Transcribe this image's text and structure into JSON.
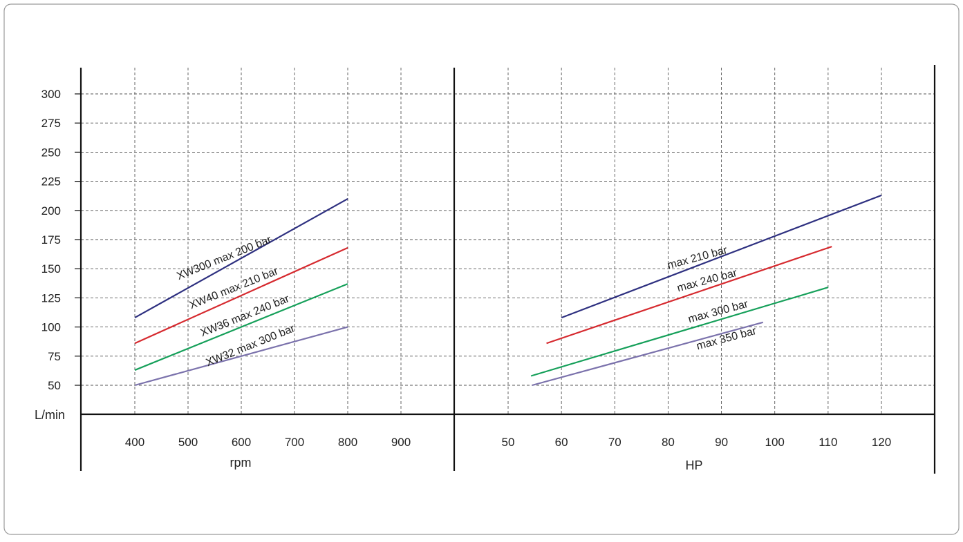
{
  "chart_data": [
    {
      "type": "line",
      "title": "",
      "ylabel": "L/min",
      "xlabel": "rpm",
      "xlim": [
        300,
        1000
      ],
      "ylim": [
        25,
        320
      ],
      "xticks": [
        400,
        500,
        600,
        700,
        800,
        900
      ],
      "yticks": [
        50,
        75,
        100,
        125,
        150,
        175,
        200,
        225,
        250,
        275,
        300
      ],
      "grid": true,
      "series": [
        {
          "name": "XW300 max 200 bar",
          "color": "#2e3080",
          "x": [
            400,
            800
          ],
          "y": [
            108,
            210
          ]
        },
        {
          "name": "XW40 max 210 bar",
          "color": "#d62a2f",
          "x": [
            400,
            800
          ],
          "y": [
            86,
            168
          ]
        },
        {
          "name": "XW36 max 240 bar",
          "color": "#16a05a",
          "x": [
            400,
            800
          ],
          "y": [
            63,
            137
          ]
        },
        {
          "name": "XW32 max 300 bar",
          "color": "#7b72ac",
          "x": [
            400,
            800
          ],
          "y": [
            50,
            100
          ]
        }
      ]
    },
    {
      "type": "line",
      "title": "",
      "ylabel": "",
      "xlabel": "HP",
      "xlim": [
        40,
        130
      ],
      "ylim": [
        25,
        320
      ],
      "xticks": [
        50,
        60,
        70,
        80,
        90,
        100,
        110,
        120
      ],
      "yticks": [
        50,
        75,
        100,
        125,
        150,
        175,
        200,
        225,
        250,
        275,
        300
      ],
      "grid": true,
      "series": [
        {
          "name": "max 210 bar",
          "color": "#2e3080",
          "x": [
            60,
            120
          ],
          "y": [
            108,
            213
          ]
        },
        {
          "name": "max 240 bar",
          "color": "#d62a2f",
          "x": [
            57.2,
            110.7
          ],
          "y": [
            86,
            169
          ]
        },
        {
          "name": "max 300 bar",
          "color": "#16a05a",
          "x": [
            54.3,
            110
          ],
          "y": [
            58,
            134
          ]
        },
        {
          "name": "max 350 bar",
          "color": "#7b72ac",
          "x": [
            54.5,
            97.8
          ],
          "y": [
            50,
            104
          ]
        }
      ]
    }
  ]
}
